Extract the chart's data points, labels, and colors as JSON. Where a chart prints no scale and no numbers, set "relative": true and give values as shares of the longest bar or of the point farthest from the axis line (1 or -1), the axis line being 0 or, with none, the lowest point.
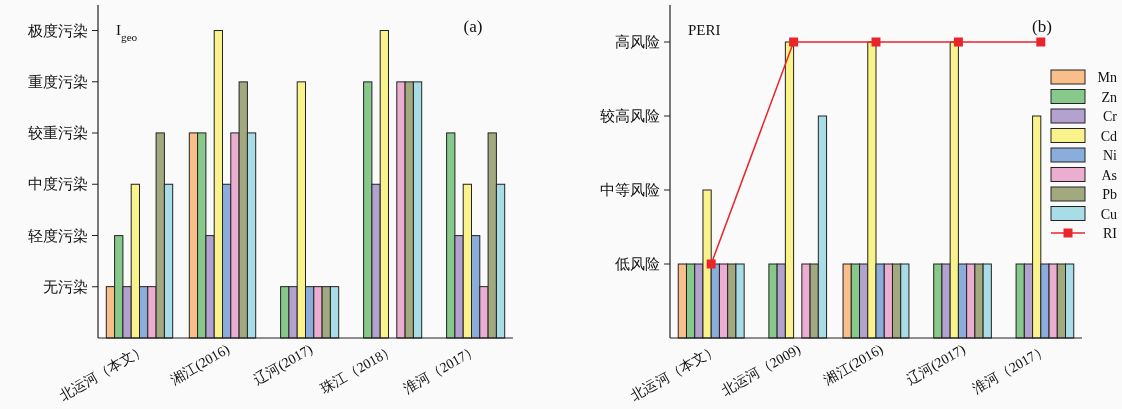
{
  "chart_data": [
    {
      "type": "bar",
      "relative": true,
      "categories": [
        "北运河（本文）",
        "湘江(2016)",
        "辽河(2017)",
        "珠江（2018）",
        "淮河（2017）"
      ],
      "series": [
        {
          "color": "#f9bf8a",
          "values": [
            0.167,
            0.667,
            null,
            null,
            null
          ]
        },
        {
          "color": "#86c98a",
          "values": [
            0.333,
            0.667,
            0.167,
            0.833,
            0.667
          ]
        },
        {
          "color": "#b3a2cf",
          "values": [
            0.167,
            0.333,
            0.167,
            0.5,
            0.333
          ]
        },
        {
          "color": "#faf28a",
          "values": [
            0.5,
            1,
            0.833,
            1,
            0.5
          ]
        },
        {
          "color": "#8aaddc",
          "values": [
            0.167,
            0.5,
            0.167,
            null,
            0.333
          ]
        },
        {
          "color": "#ebaed0",
          "values": [
            0.167,
            0.667,
            0.167,
            0.833,
            0.167
          ]
        },
        {
          "color": "#a3a97f",
          "values": [
            0.667,
            0.833,
            0.167,
            0.833,
            0.667
          ]
        },
        {
          "color": "#a8dce6",
          "values": [
            0.5,
            0.667,
            0.167,
            0.833,
            0.5
          ]
        }
      ],
      "annotations": [
        "无污染",
        "轻度污染",
        "中度污染",
        "较重污染",
        "重度污染",
        "极度污染",
        "I$_{geo}$",
        "(a)"
      ]
    },
    {
      "type": "bar",
      "relative": true,
      "categories": [
        "北运河（本文）",
        "北运河（2009)",
        "湘江(2016)",
        "辽河(2017)",
        "淮河（2017）"
      ],
      "series": [
        {
          "name": "Mn",
          "color": "#f9bf8a",
          "values": [
            0.25,
            null,
            0.25,
            null,
            null
          ]
        },
        {
          "name": "Zn",
          "color": "#86c98a",
          "values": [
            0.25,
            0.25,
            0.25,
            0.25,
            0.25
          ]
        },
        {
          "name": "Cr",
          "color": "#b3a2cf",
          "values": [
            0.25,
            0.25,
            0.25,
            0.25,
            0.25
          ]
        },
        {
          "name": "Cd",
          "color": "#faf28a",
          "values": [
            0.5,
            1,
            1,
            1,
            0.75
          ]
        },
        {
          "name": "Ni",
          "color": "#8aaddc",
          "values": [
            0.25,
            null,
            0.25,
            0.25,
            0.25
          ]
        },
        {
          "name": "As",
          "color": "#ebaed0",
          "values": [
            0.25,
            0.25,
            0.25,
            0.25,
            0.25
          ]
        },
        {
          "name": "Pb",
          "color": "#a3a97f",
          "values": [
            0.25,
            0.25,
            0.25,
            0.25,
            0.25
          ]
        },
        {
          "name": "Cu",
          "color": "#a8dce6",
          "values": [
            0.25,
            0.75,
            0.25,
            0.25,
            0.25
          ]
        },
        {
          "name": "RI",
          "color": "#e8252b",
          "type": "line",
          "marker": "square",
          "values": [
            0.25,
            1,
            1,
            1,
            1
          ]
        }
      ],
      "annotations": [
        "低风险",
        "中等风险",
        "较高风险",
        "高风险",
        "PERI",
        "(b)"
      ],
      "legend": "right"
    }
  ]
}
